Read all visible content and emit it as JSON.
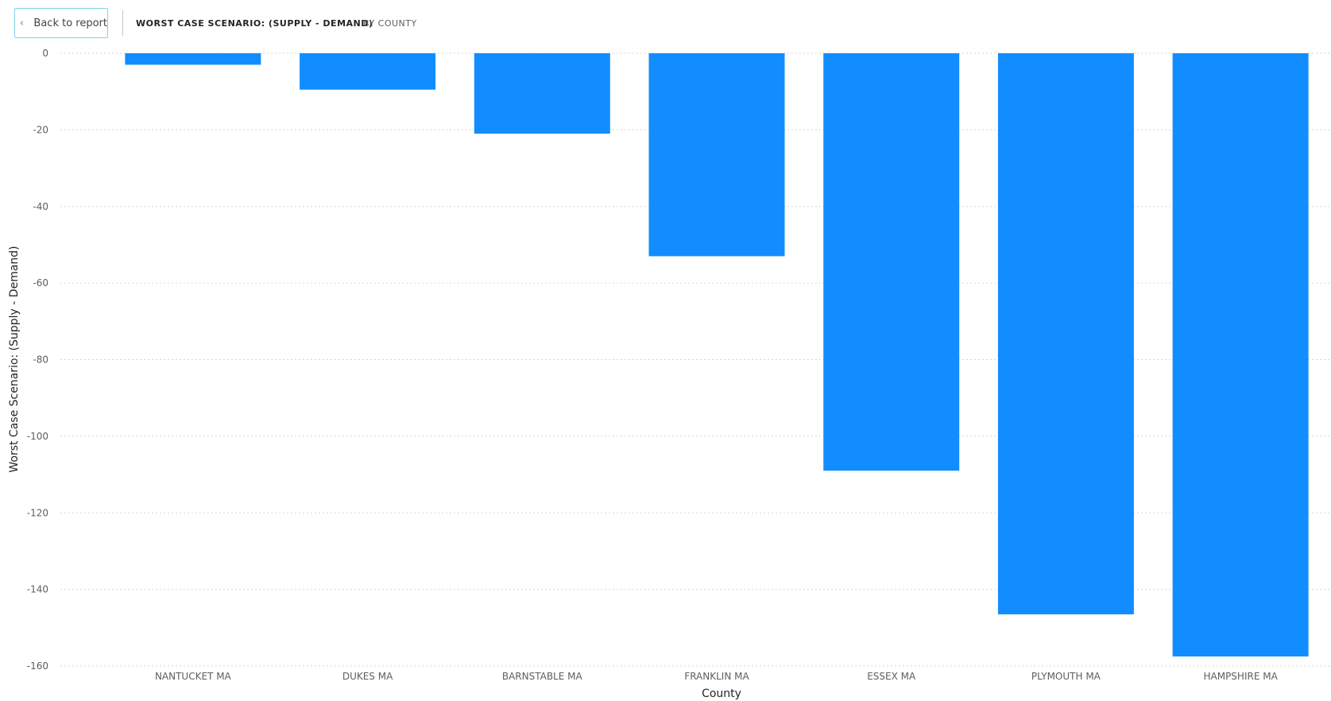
{
  "header": {
    "back_label": "Back to report",
    "title": "WORST CASE SCENARIO: (SUPPLY - DEMAND)",
    "subtitle": "BY COUNTY"
  },
  "chart_data": {
    "type": "bar",
    "categories": [
      "NANTUCKET MA",
      "DUKES MA",
      "BARNSTABLE MA",
      "FRANKLIN MA",
      "ESSEX MA",
      "PLYMOUTH MA",
      "HAMPSHIRE MA"
    ],
    "values": [
      -3,
      -9.5,
      -21,
      -53,
      -109,
      -146.5,
      -157.5
    ],
    "title": "WORST CASE SCENARIO: (SUPPLY - DEMAND)",
    "subtitle": "BY COUNTY",
    "xlabel": "County",
    "ylabel": "Worst Case Scenario: (Supply - Demand)",
    "ylim": [
      -160,
      0
    ],
    "yticks": [
      0,
      -20,
      -40,
      -60,
      -80,
      -100,
      -120,
      -140,
      -160
    ],
    "grid": true,
    "bar_color": "#118dff",
    "grid_color": "#d6d6d6"
  }
}
